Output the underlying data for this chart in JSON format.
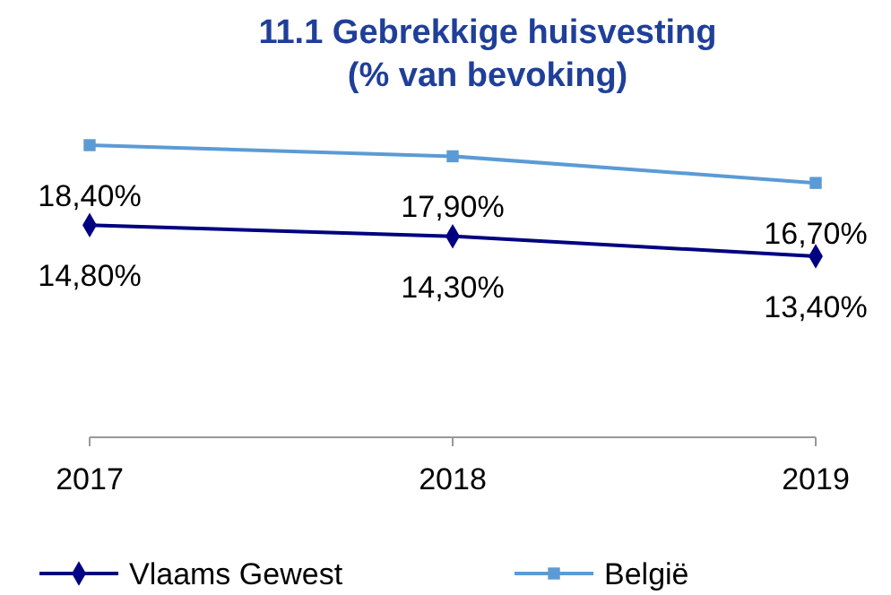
{
  "chart_data": {
    "type": "line",
    "title": "11.1 Gebrekkige huisvesting\n(% van bevoking)",
    "categories": [
      "2017",
      "2018",
      "2019"
    ],
    "series": [
      {
        "name": "Vlaams Gewest",
        "color": "#000080",
        "marker": "diamond",
        "values": [
          14.8,
          14.3,
          13.4
        ],
        "value_labels": [
          "14,80%",
          "14,30%",
          "13,40%"
        ]
      },
      {
        "name": "België",
        "color": "#5b9bd5",
        "marker": "square",
        "values": [
          18.4,
          17.9,
          16.7
        ],
        "value_labels": [
          "18,40%",
          "17,90%",
          "16,70%"
        ]
      }
    ],
    "tick_labels": "x",
    "grid": false,
    "legend": "bottom"
  }
}
